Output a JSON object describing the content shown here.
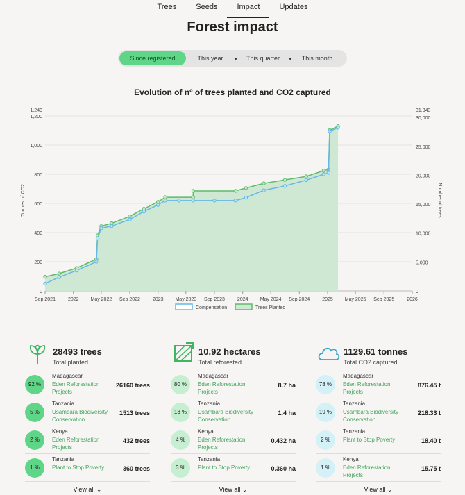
{
  "nav": {
    "tabs": [
      "Trees",
      "Seeds",
      "Impact",
      "Updates"
    ],
    "active": "Impact"
  },
  "page_title": "Forest impact",
  "period": {
    "options": [
      "Since registered",
      "This year",
      "This quarter",
      "This month"
    ],
    "active": "Since registered"
  },
  "chart_title": "Evolution of nº of trees planted and CO2 captured",
  "chart_data": {
    "type": "area",
    "x_ticks": [
      "Sep 2021",
      "2022",
      "May 2022",
      "Sep 2022",
      "2023",
      "May 2023",
      "Sep 2023",
      "2024",
      "May 2024",
      "Sep 2024",
      "2025",
      "May 2025",
      "Sep 2025",
      "2026"
    ],
    "ylabel_left": "Tonnes of CO2",
    "ylabel_right": "Number of trees",
    "y_left_ticks": [
      0,
      200,
      400,
      600,
      800,
      1000,
      1200,
      1243
    ],
    "y_left_tick_labels": [
      "0",
      "200",
      "400",
      "600",
      "800",
      "1,000",
      "1,200",
      "1,243"
    ],
    "y_right_ticks": [
      0,
      5000,
      10000,
      15000,
      20000,
      25000,
      30000,
      31343
    ],
    "y_right_tick_labels": [
      "0",
      "5,000",
      "10,000",
      "15,000",
      "20,000",
      "25,000",
      "30,000",
      "31,343"
    ],
    "ylim_left": [
      0,
      1243
    ],
    "ylim_right": [
      0,
      31343
    ],
    "series": [
      {
        "name": "Compensation",
        "axis": "left",
        "color": "#63b8e6",
        "points": [
          [
            "2021-09-01",
            50
          ],
          [
            "2021-11-01",
            95
          ],
          [
            "2022-01-15",
            140
          ],
          [
            "2022-04-10",
            200
          ],
          [
            "2022-04-15",
            360
          ],
          [
            "2022-05-01",
            430
          ],
          [
            "2022-06-15",
            445
          ],
          [
            "2022-09-01",
            490
          ],
          [
            "2022-11-01",
            545
          ],
          [
            "2023-01-01",
            590
          ],
          [
            "2023-02-01",
            620
          ],
          [
            "2023-04-01",
            620
          ],
          [
            "2023-06-01",
            620
          ],
          [
            "2023-09-01",
            620
          ],
          [
            "2023-12-01",
            620
          ],
          [
            "2024-01-15",
            640
          ],
          [
            "2024-04-01",
            690
          ],
          [
            "2024-07-01",
            720
          ],
          [
            "2024-10-01",
            760
          ],
          [
            "2024-12-15",
            800
          ],
          [
            "2025-01-05",
            810
          ],
          [
            "2025-01-10",
            1095
          ],
          [
            "2025-02-15",
            1120
          ]
        ]
      },
      {
        "name": "Trees Planted",
        "axis": "right",
        "color": "#5dbb6a",
        "fill": "#cfe8d3",
        "points": [
          [
            "2021-09-01",
            2450
          ],
          [
            "2021-11-01",
            3000
          ],
          [
            "2022-01-15",
            3950
          ],
          [
            "2022-04-10",
            5500
          ],
          [
            "2022-04-15",
            9600
          ],
          [
            "2022-05-01",
            11200
          ],
          [
            "2022-06-15",
            11700
          ],
          [
            "2022-09-01",
            12900
          ],
          [
            "2022-11-01",
            14200
          ],
          [
            "2023-01-01",
            15400
          ],
          [
            "2023-02-01",
            16200
          ],
          [
            "2023-06-01",
            16200
          ],
          [
            "2023-06-02",
            17300
          ],
          [
            "2023-12-01",
            17300
          ],
          [
            "2024-01-15",
            17800
          ],
          [
            "2024-04-01",
            18600
          ],
          [
            "2024-07-01",
            19200
          ],
          [
            "2024-10-01",
            19800
          ],
          [
            "2024-12-15",
            20800
          ],
          [
            "2025-01-05",
            21000
          ],
          [
            "2025-01-10",
            27800
          ],
          [
            "2025-02-15",
            28493
          ]
        ]
      }
    ],
    "legend": [
      "Compensation",
      "Trees Planted"
    ],
    "legend_position": "bottom"
  },
  "stats": [
    {
      "icon": "sprout-icon",
      "value": "28493 trees",
      "label": "Total planted",
      "rows": [
        {
          "pct": "92 %",
          "country": "Madagascar",
          "project": "Eden Reforestation Projects",
          "amount": "26160 trees"
        },
        {
          "pct": "5 %",
          "country": "Tanzania",
          "project": "Usambara Biodiversity Conservation",
          "amount": "1513 trees"
        },
        {
          "pct": "2 %",
          "country": "Kenya",
          "project": "Eden Reforestation Projects",
          "amount": "432 trees"
        },
        {
          "pct": "1 %",
          "country": "Tanzania",
          "project": "Plant to Stop Poverty",
          "amount": "360 trees"
        }
      ],
      "pct_color": "#5fd587",
      "view_all": "View all"
    },
    {
      "icon": "area-icon",
      "value": "10.92 hectares",
      "label": "Total reforested",
      "rows": [
        {
          "pct": "80 %",
          "country": "Madagascar",
          "project": "Eden Reforestation Projects",
          "amount": "8.7 ha"
        },
        {
          "pct": "13 %",
          "country": "Tanzania",
          "project": "Usambara Biodiversity Conservation",
          "amount": "1.4 ha"
        },
        {
          "pct": "4 %",
          "country": "Kenya",
          "project": "Eden Reforestation Projects",
          "amount": "0.432 ha"
        },
        {
          "pct": "3 %",
          "country": "Tanzania",
          "project": "Plant to Stop Poverty",
          "amount": "0.360 ha"
        }
      ],
      "pct_color": "#c6efd2",
      "view_all": "View all"
    },
    {
      "icon": "cloud-icon",
      "value": "1129.61 tonnes",
      "label": "Total CO2 captured",
      "rows": [
        {
          "pct": "78 %",
          "country": "Madagascar",
          "project": "Eden Reforestation Projects",
          "amount": "876.45 t"
        },
        {
          "pct": "19 %",
          "country": "Tanzania",
          "project": "Usambara Biodiversity Conservation",
          "amount": "218.33 t"
        },
        {
          "pct": "2 %",
          "country": "Tanzania",
          "project": "Plant to Stop Poverty",
          "amount": "18.40 t"
        },
        {
          "pct": "1 %",
          "country": "Kenya",
          "project": "Eden Reforestation Projects",
          "amount": "15.75 t"
        }
      ],
      "pct_color": "#d3f1f6",
      "view_all": "View all"
    }
  ]
}
